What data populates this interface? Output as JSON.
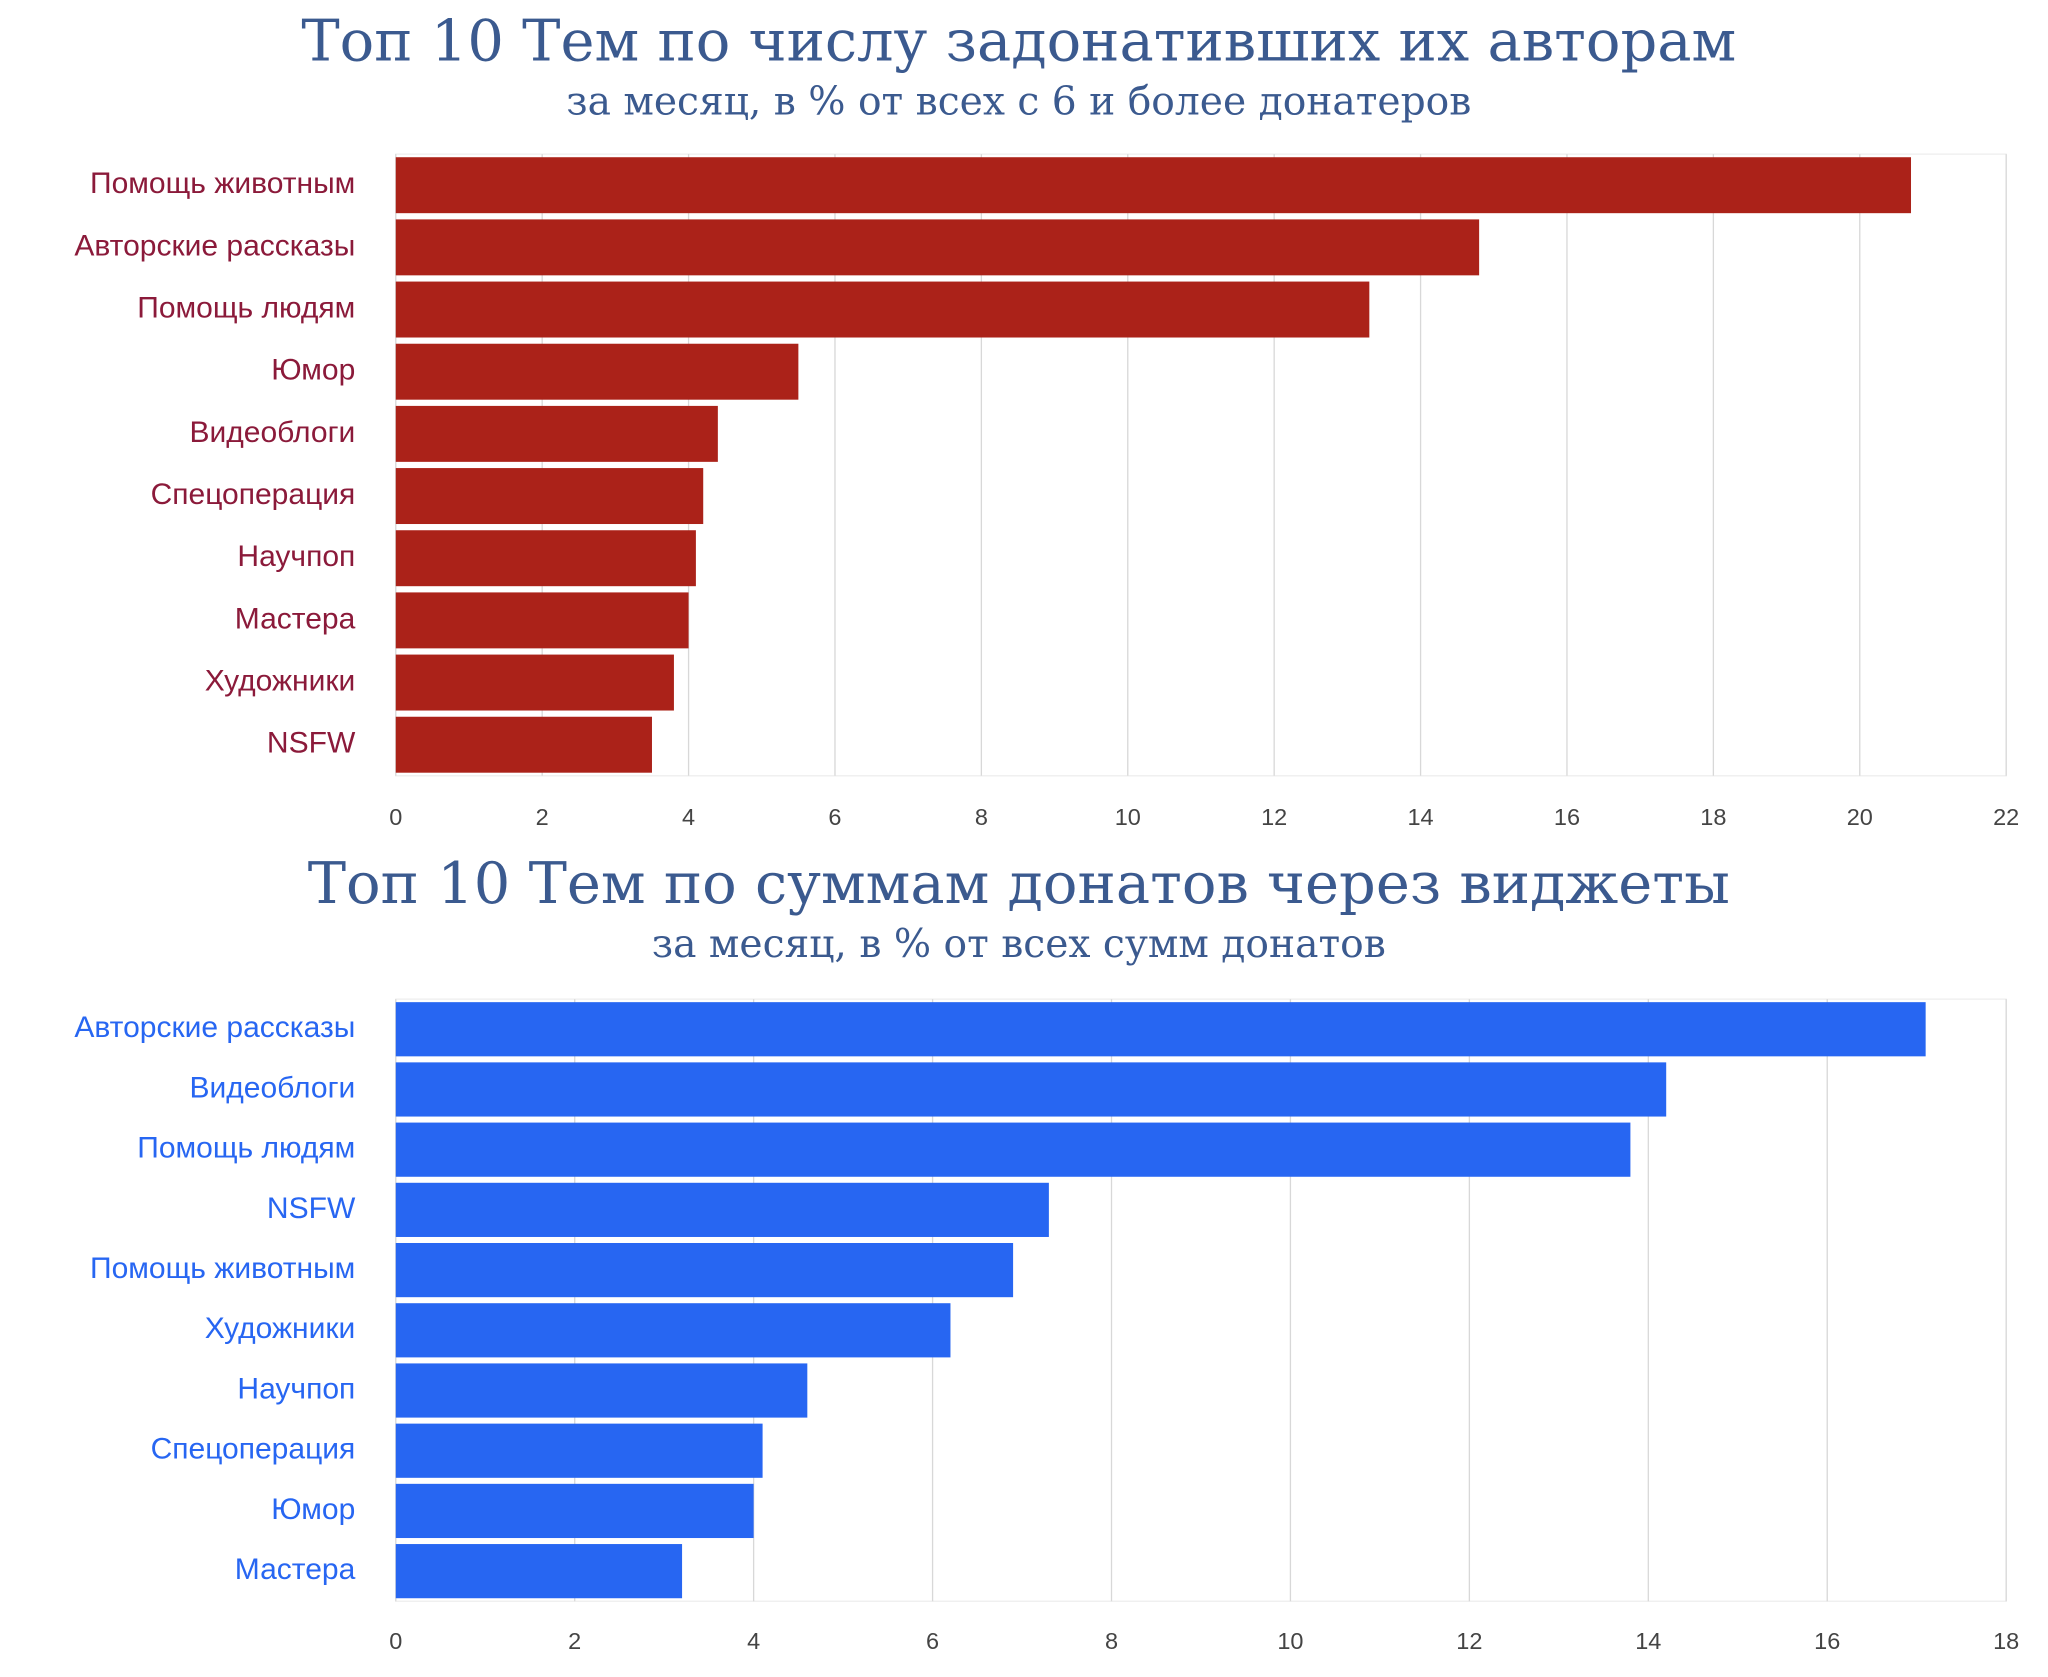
{
  "chart_data": [
    {
      "type": "bar",
      "orientation": "horizontal",
      "title": "Топ 10 Тем по числу задонативших их авторам",
      "subtitle": "за месяц, в % от всех с 6 и более донатеров",
      "categories": [
        "Помощь животным",
        "Авторские рассказы",
        "Помощь людям",
        "Юмор",
        "Видеоблоги",
        "Спецоперация",
        "Научпоп",
        "Мастера",
        "Художники",
        "NSFW"
      ],
      "values": [
        20.7,
        14.8,
        13.3,
        5.5,
        4.4,
        4.2,
        4.1,
        4.0,
        3.8,
        3.5
      ],
      "color": "#ab2219",
      "label_color": "#8b1a3a",
      "xlim": [
        0,
        22
      ],
      "xticks": [
        0,
        2,
        4,
        6,
        8,
        10,
        12,
        14,
        16,
        18,
        20,
        22
      ],
      "grid": true
    },
    {
      "type": "bar",
      "orientation": "horizontal",
      "title": "Топ 10 Тем по суммам донатов через виджеты",
      "subtitle": "за месяц, в % от всех сумм донатов",
      "categories": [
        "Авторские рассказы",
        "Видеоблоги",
        "Помощь людям",
        "NSFW",
        "Помощь животным",
        "Художники",
        "Научпоп",
        "Спецоперация",
        "Юмор",
        "Мастера"
      ],
      "values": [
        17.1,
        14.2,
        13.8,
        7.3,
        6.9,
        6.2,
        4.6,
        4.1,
        4.0,
        3.2
      ],
      "color": "#2766f2",
      "label_color": "#2766f2",
      "xlim": [
        0,
        18
      ],
      "xticks": [
        0,
        2,
        4,
        6,
        8,
        10,
        12,
        14,
        16,
        18
      ],
      "grid": true
    }
  ]
}
